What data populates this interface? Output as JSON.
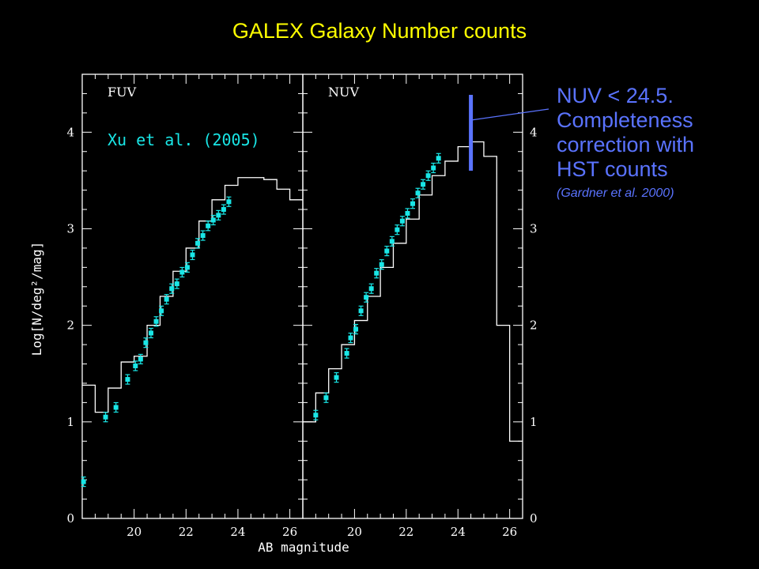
{
  "title": "GALEX Galaxy Number counts",
  "annotation": {
    "lines": [
      "NUV < 24.5.",
      "Completeness",
      "correction with",
      "HST counts"
    ],
    "reference": "(Gardner et al. 2000)",
    "marker_magnitude": 24.5
  },
  "colors": {
    "title": "#ffff00",
    "annotation": "#5a73ff",
    "data_points": "#19e6e6",
    "model": "#ffffff",
    "axes": "#ffffff"
  },
  "chart_data": {
    "type": "scatter",
    "xlabel": "AB magnitude",
    "ylabel": "Log[N/deg²/mag]",
    "xlim": [
      18,
      26.5
    ],
    "ylim": [
      0,
      4.6
    ],
    "xticks": [
      "20",
      "22",
      "24",
      "26"
    ],
    "yticks": [
      "0",
      "1",
      "2",
      "3",
      "4"
    ],
    "panels": [
      {
        "label": "FUV",
        "legend": "Xu et al. (2005)",
        "points": [
          [
            18.05,
            0.38
          ],
          [
            18.9,
            1.05
          ],
          [
            19.3,
            1.15
          ],
          [
            19.75,
            1.44
          ],
          [
            20.05,
            1.58
          ],
          [
            20.25,
            1.65
          ],
          [
            20.45,
            1.82
          ],
          [
            20.65,
            1.92
          ],
          [
            20.85,
            2.04
          ],
          [
            21.05,
            2.15
          ],
          [
            21.25,
            2.27
          ],
          [
            21.45,
            2.38
          ],
          [
            21.65,
            2.43
          ],
          [
            21.85,
            2.55
          ],
          [
            22.05,
            2.6
          ],
          [
            22.25,
            2.73
          ],
          [
            22.45,
            2.85
          ],
          [
            22.65,
            2.93
          ],
          [
            22.85,
            3.03
          ],
          [
            23.05,
            3.09
          ],
          [
            23.25,
            3.14
          ],
          [
            23.45,
            3.2
          ],
          [
            23.65,
            3.28
          ]
        ],
        "model_edges": [
          18,
          18.5,
          19,
          19.5,
          20,
          20.5,
          21,
          21.5,
          22,
          22.5,
          23,
          23.5,
          24,
          24.5,
          25,
          25.5,
          26,
          26.5
        ],
        "model_values": [
          1.38,
          1.1,
          1.35,
          1.62,
          1.68,
          2.0,
          2.3,
          2.56,
          2.8,
          3.08,
          3.3,
          3.45,
          3.53,
          3.53,
          3.51,
          3.41,
          3.3
        ]
      },
      {
        "label": "NUV",
        "legend": "",
        "points": [
          [
            18.5,
            1.07
          ],
          [
            18.9,
            1.25
          ],
          [
            19.3,
            1.46
          ],
          [
            19.7,
            1.71
          ],
          [
            19.85,
            1.87
          ],
          [
            20.05,
            1.96
          ],
          [
            20.25,
            2.15
          ],
          [
            20.45,
            2.29
          ],
          [
            20.65,
            2.38
          ],
          [
            20.85,
            2.54
          ],
          [
            21.05,
            2.63
          ],
          [
            21.25,
            2.77
          ],
          [
            21.45,
            2.87
          ],
          [
            21.65,
            2.99
          ],
          [
            21.85,
            3.08
          ],
          [
            22.05,
            3.16
          ],
          [
            22.25,
            3.26
          ],
          [
            22.45,
            3.37
          ],
          [
            22.65,
            3.46
          ],
          [
            22.85,
            3.55
          ],
          [
            23.05,
            3.63
          ],
          [
            23.25,
            3.73
          ]
        ],
        "model_edges": [
          18,
          18.5,
          19,
          19.5,
          20,
          20.5,
          21,
          21.5,
          22,
          22.5,
          23,
          23.5,
          24,
          24.5,
          25,
          25.5,
          26,
          26.5
        ],
        "model_values": [
          1.0,
          1.3,
          1.55,
          1.8,
          2.05,
          2.3,
          2.6,
          2.85,
          3.1,
          3.35,
          3.55,
          3.7,
          3.85,
          3.9,
          3.75,
          2.0,
          0.8
        ]
      }
    ]
  }
}
